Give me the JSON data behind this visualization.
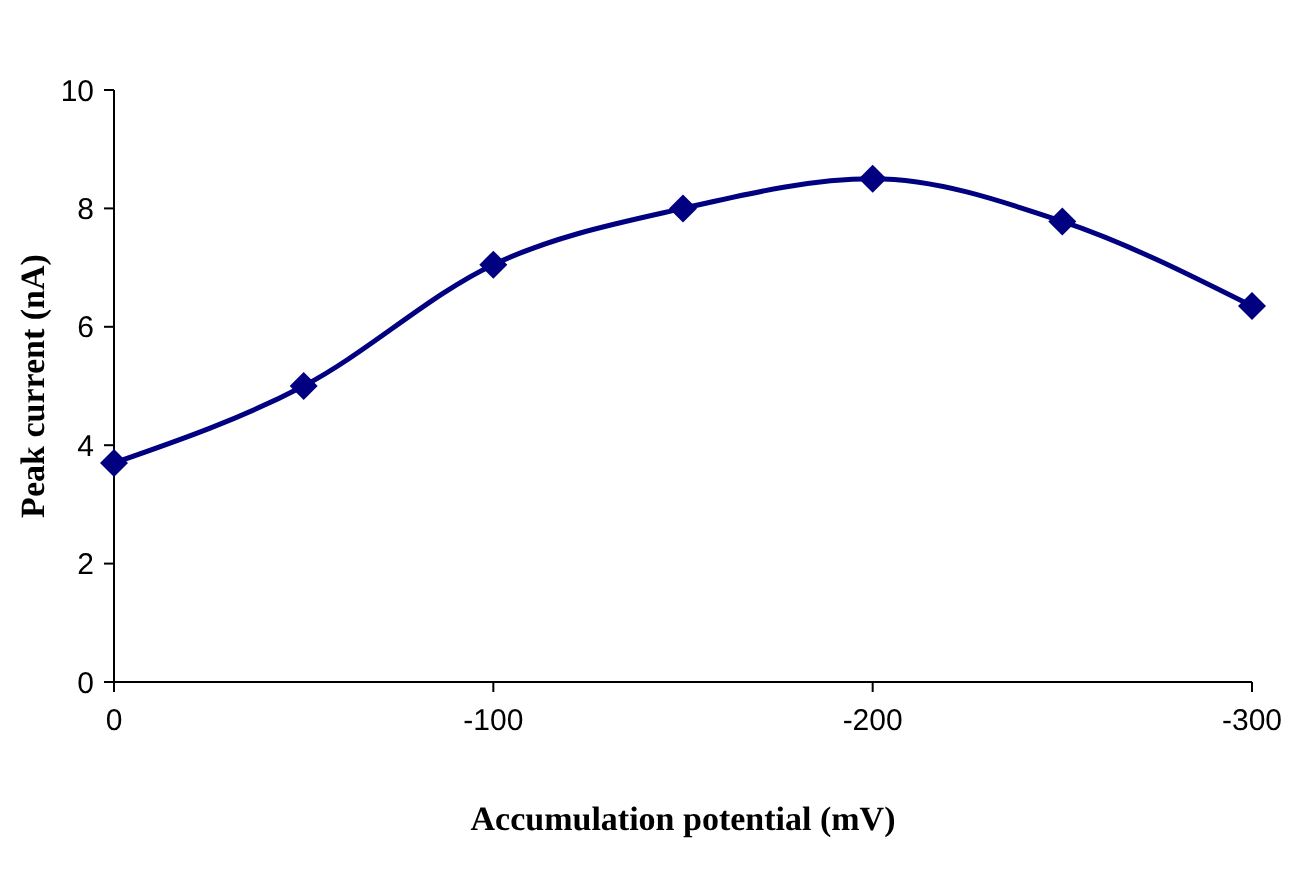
{
  "chart_data": {
    "type": "line",
    "xlabel": "Accumulation potential (mV)",
    "ylabel": "Peak current (nA)",
    "x": [
      0,
      -50,
      -100,
      -150,
      -200,
      -250,
      -300
    ],
    "series": [
      {
        "color": "#000080",
        "values": [
          3.7,
          5.0,
          7.05,
          8.0,
          8.5,
          7.78,
          6.35
        ]
      }
    ],
    "xlim": [
      0,
      -300
    ],
    "xticks": [
      0,
      -100,
      -200,
      -300
    ],
    "ylim": [
      0,
      10
    ],
    "yticks": [
      0,
      2,
      4,
      6,
      8,
      10
    ],
    "marker": "diamond",
    "line_style": "solid"
  }
}
